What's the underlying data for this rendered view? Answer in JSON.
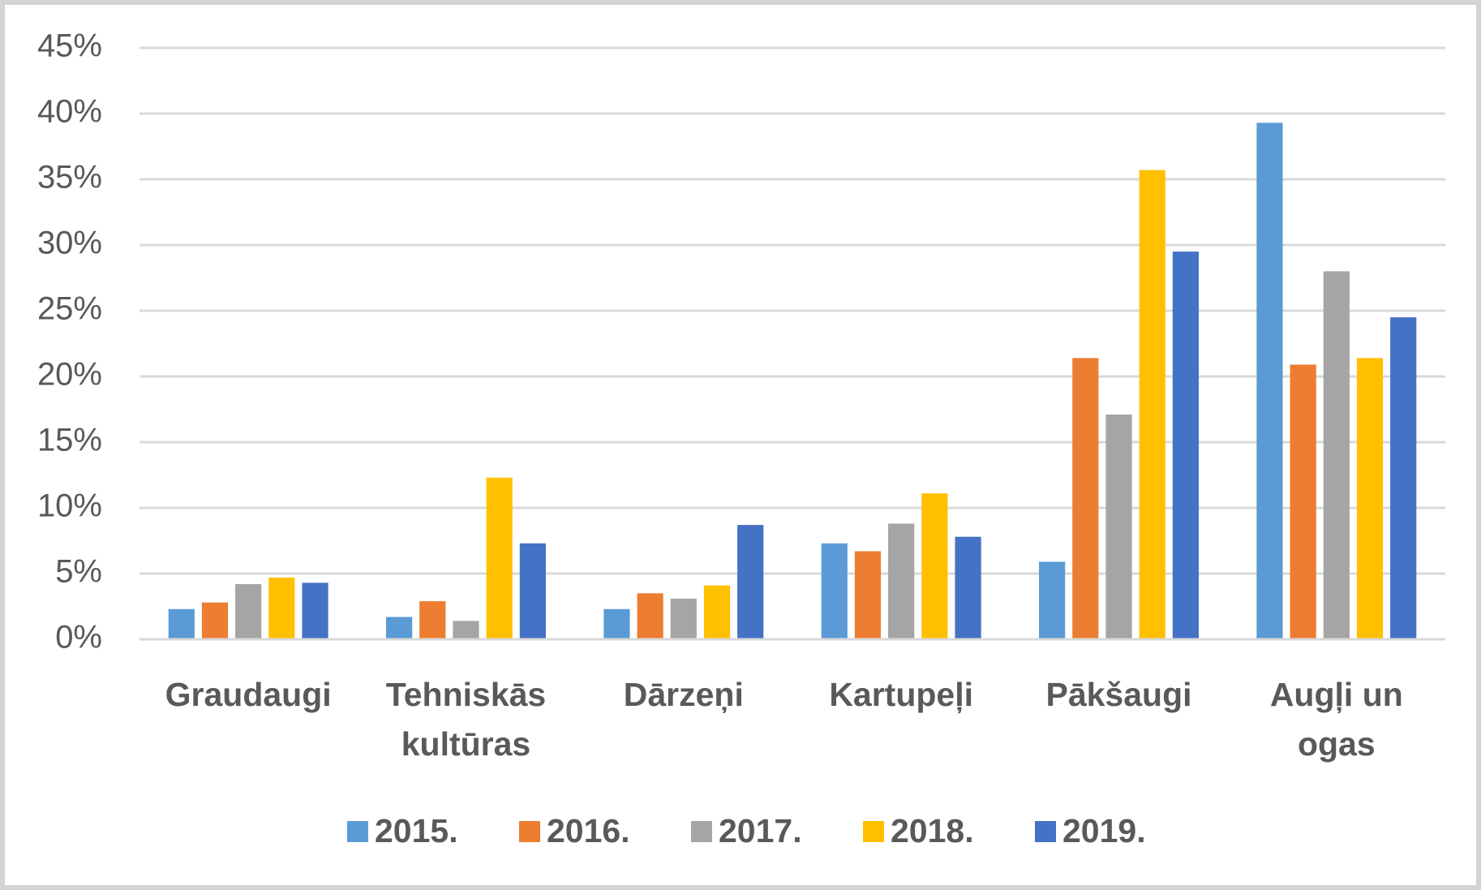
{
  "chart_data": {
    "type": "bar",
    "categories": [
      "Graudaugi",
      "Tehniskās kultūras",
      "Dārzeņi",
      "Kartupeļi",
      "Pākšaugi",
      "Augļi un ogas"
    ],
    "series": [
      {
        "name": "2015.",
        "color": "#5b9bd5",
        "values": [
          2.3,
          1.7,
          2.3,
          7.3,
          5.9,
          39.3
        ]
      },
      {
        "name": "2016.",
        "color": "#ed7d31",
        "values": [
          2.8,
          2.9,
          3.5,
          6.7,
          21.4,
          20.9
        ]
      },
      {
        "name": "2017.",
        "color": "#a5a5a5",
        "values": [
          4.2,
          1.4,
          3.1,
          8.8,
          17.1,
          28.0
        ]
      },
      {
        "name": "2018.",
        "color": "#ffc000",
        "values": [
          4.7,
          12.3,
          4.1,
          11.1,
          35.7,
          21.4
        ]
      },
      {
        "name": "2019.",
        "color": "#4472c4",
        "values": [
          4.3,
          7.3,
          8.7,
          7.8,
          29.5,
          24.5
        ]
      }
    ],
    "ylim": [
      0,
      45
    ],
    "yticks": [
      {
        "value": 0,
        "label": "0%"
      },
      {
        "value": 5,
        "label": "5%"
      },
      {
        "value": 10,
        "label": "10%"
      },
      {
        "value": 15,
        "label": "15%"
      },
      {
        "value": 20,
        "label": "20%"
      },
      {
        "value": 25,
        "label": "25%"
      },
      {
        "value": 30,
        "label": "30%"
      },
      {
        "value": 35,
        "label": "35%"
      },
      {
        "value": 40,
        "label": "40%"
      },
      {
        "value": 45,
        "label": "45%"
      }
    ],
    "grid": true,
    "legend": "bottom"
  }
}
